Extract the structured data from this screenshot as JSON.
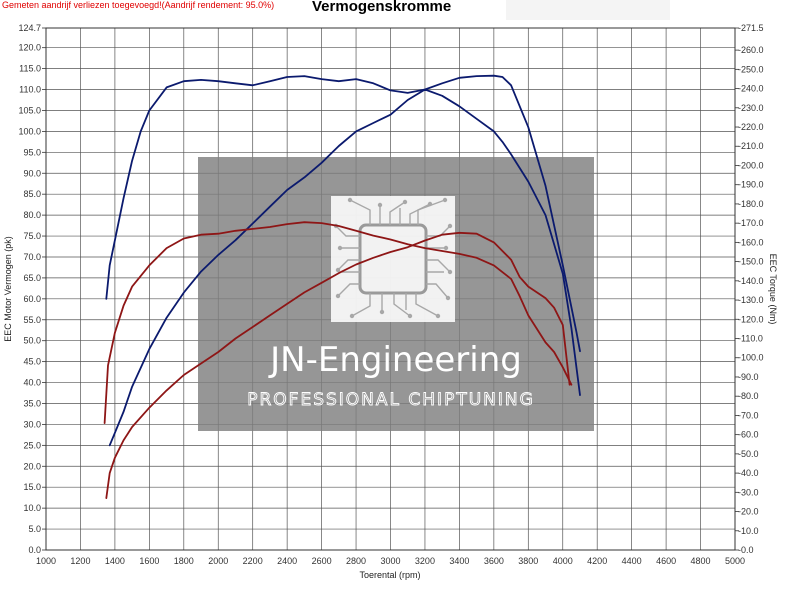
{
  "notice": "Gemeten aandrijf verliezen toegevoegd!(Aandrijf rendement: 95.0%)",
  "watermark": {
    "title": "JN-Engineering",
    "subtitle": "PROFESSIONAL CHIPTUNING"
  },
  "colors": {
    "power": "#0b1a6e",
    "torque": "#8e1616",
    "grid": "#555555",
    "watermark_bg": "#7f7f7f"
  },
  "chart_data": {
    "type": "line",
    "title": "Vermogenskromme",
    "xlabel": "Toerental (rpm)",
    "ylabel_left": "EEC Motor Vermogen (pk)",
    "ylabel_right": "EEC Torque (Nm)",
    "xlim": [
      1000,
      5000
    ],
    "ylim_left": [
      0.0,
      124.7
    ],
    "ylim_right": [
      0.0,
      271.5
    ],
    "x_ticks": [
      1000,
      1200,
      1400,
      1600,
      1800,
      2000,
      2200,
      2400,
      2600,
      2800,
      3000,
      3200,
      3400,
      3600,
      3800,
      4000,
      4200,
      4400,
      4600,
      4800,
      5000
    ],
    "y_ticks_left": [
      "0.0",
      "5.0",
      "10.0",
      "15.0",
      "20.0",
      "25.0",
      "30.0",
      "35.0",
      "40.0",
      "45.0",
      "50.0",
      "55.0",
      "60.0",
      "65.0",
      "70.0",
      "75.0",
      "80.0",
      "85.0",
      "90.0",
      "95.0",
      "100.0",
      "105.0",
      "110.0",
      "115.0",
      "120.0",
      "124.7"
    ],
    "y_ticks_right": [
      "0.0",
      "10.0",
      "20.0",
      "30.0",
      "40.0",
      "50.0",
      "60.0",
      "70.0",
      "80.0",
      "90.0",
      "100.0",
      "110.0",
      "120.0",
      "130.0",
      "140.0",
      "150.0",
      "160.0",
      "170.0",
      "180.0",
      "190.0",
      "200.0",
      "210.0",
      "220.0",
      "230.0",
      "240.0",
      "250.0",
      "260.0",
      "271.5"
    ],
    "grid": true,
    "series": [
      {
        "axis": "left",
        "color": "#0b1a6e",
        "x": [
          1350,
          1370,
          1400,
          1450,
          1500,
          1550,
          1600,
          1700,
          1800,
          1900,
          2000,
          2100,
          2200,
          2300,
          2400,
          2500,
          2600,
          2700,
          2800,
          2900,
          3000,
          3100,
          3200,
          3300,
          3400,
          3500,
          3600,
          3650,
          3700,
          3800,
          3900,
          4000,
          4050,
          4080,
          4100
        ],
        "y": [
          60,
          68,
          74,
          84,
          93,
          100,
          105,
          110.5,
          112,
          112.3,
          112,
          111.5,
          111,
          112,
          113,
          113.2,
          112.5,
          112,
          112.5,
          111.5,
          109.8,
          109.2,
          110,
          111.5,
          112.8,
          113.2,
          113.3,
          113,
          111,
          101,
          87,
          68,
          58,
          52,
          47.5
        ]
      },
      {
        "axis": "left",
        "color": "#0b1a6e",
        "x": [
          1370,
          1400,
          1450,
          1500,
          1600,
          1700,
          1800,
          1900,
          2000,
          2100,
          2200,
          2300,
          2400,
          2500,
          2600,
          2700,
          2800,
          2900,
          3000,
          3100,
          3200,
          3300,
          3400,
          3500,
          3600,
          3650,
          3700,
          3800,
          3900,
          4000,
          4050,
          4100
        ],
        "y": [
          25,
          28,
          33,
          39,
          48,
          55.5,
          61.5,
          66.5,
          70.5,
          74,
          78,
          82,
          86,
          89,
          92.5,
          96.5,
          100,
          102,
          104,
          107.5,
          110,
          108.5,
          106,
          103,
          100,
          97.5,
          94.5,
          88,
          80,
          66,
          53,
          37
        ]
      },
      {
        "axis": "right",
        "color": "#8e1616",
        "x": [
          1340,
          1360,
          1400,
          1450,
          1500,
          1600,
          1700,
          1800,
          1900,
          2000,
          2100,
          2200,
          2300,
          2400,
          2500,
          2600,
          2700,
          2800,
          2900,
          3000,
          3100,
          3200,
          3300,
          3400,
          3500,
          3600,
          3700,
          3750,
          3800,
          3900,
          3950,
          4000,
          4050
        ],
        "y": [
          66,
          96,
          113,
          127,
          137,
          148,
          157,
          162,
          164,
          164.5,
          166,
          167,
          168,
          169.5,
          170.5,
          170,
          168.5,
          166,
          163.5,
          161.5,
          159,
          157,
          155.5,
          154,
          152,
          148,
          141,
          132,
          122,
          108,
          103,
          95,
          86
        ]
      },
      {
        "axis": "right",
        "color": "#8e1616",
        "x": [
          1350,
          1370,
          1400,
          1450,
          1500,
          1600,
          1700,
          1800,
          1900,
          2000,
          2100,
          2200,
          2300,
          2400,
          2500,
          2600,
          2700,
          2800,
          2900,
          3000,
          3100,
          3200,
          3300,
          3400,
          3500,
          3600,
          3700,
          3750,
          3800,
          3900,
          3950,
          4000,
          4040
        ],
        "y": [
          27,
          40,
          48,
          57,
          64,
          74,
          83,
          91,
          97,
          103,
          110,
          116,
          122,
          128,
          134,
          139,
          144,
          148.5,
          152,
          155,
          157.5,
          161,
          164,
          165,
          164.5,
          160,
          151,
          142,
          137,
          131,
          126,
          117,
          86
        ]
      }
    ]
  }
}
